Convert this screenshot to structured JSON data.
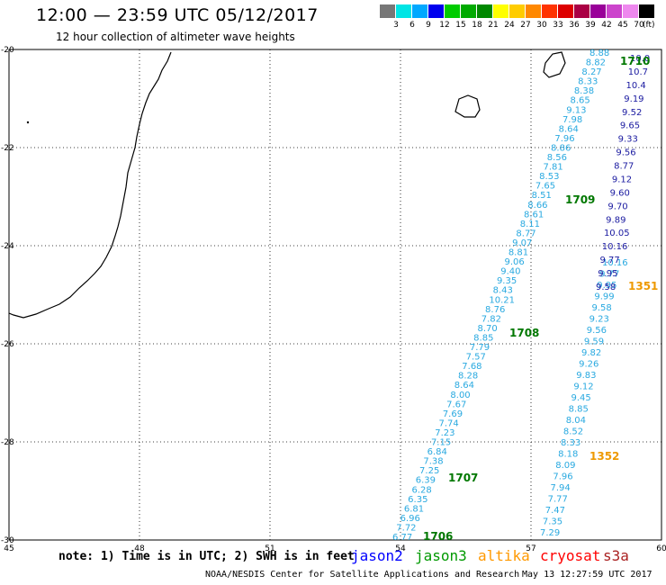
{
  "header": {
    "title": "12:00 — 23:59 UTC 05/12/2017",
    "subtitle": "12 hour collection of altimeter wave heights"
  },
  "color_scale": {
    "unit": "(ft)",
    "bins": [
      {
        "label": "3",
        "color": "#777777"
      },
      {
        "label": "6",
        "color": "#00e5e5"
      },
      {
        "label": "9",
        "color": "#00a8ff"
      },
      {
        "label": "12",
        "color": "#0000ee"
      },
      {
        "label": "15",
        "color": "#00cc00"
      },
      {
        "label": "18",
        "color": "#00aa00"
      },
      {
        "label": "21",
        "color": "#008800"
      },
      {
        "label": "24",
        "color": "#ffff00"
      },
      {
        "label": "27",
        "color": "#ffcc00"
      },
      {
        "label": "30",
        "color": "#ff8800"
      },
      {
        "label": "33",
        "color": "#ff3300"
      },
      {
        "label": "36",
        "color": "#dd0000"
      },
      {
        "label": "39",
        "color": "#aa0044"
      },
      {
        "label": "42",
        "color": "#990099"
      },
      {
        "label": "45",
        "color": "#cc44cc"
      },
      {
        "label": "70",
        "color": "#ee88ee"
      },
      {
        "label": "",
        "color": "#000000"
      }
    ]
  },
  "axes": {
    "lon_labels": [
      "45",
      "48",
      "51",
      "54",
      "57",
      "60"
    ],
    "lat_labels": [
      "-20",
      "-22",
      "-24",
      "-26",
      "-28",
      "-30"
    ]
  },
  "tracks": {
    "track1_color": "#29a9e0",
    "track1": [
      "8.88",
      "8.82",
      "8.27",
      "8.33",
      "8.38",
      "8.65",
      "9.13",
      "7.98",
      "8.64",
      "7.96",
      "8.86",
      "8.56",
      "7.81",
      "8.53",
      "7.65",
      "8.51",
      "8.66",
      "8.61",
      "8.11",
      "8.77",
      "9.07",
      "8.81",
      "9.06",
      "9.40",
      "9.35",
      "8.43",
      "10.21",
      "8.76",
      "7.82",
      "8.70",
      "8.85",
      "7.79",
      "7.57",
      "7.68",
      "8.28",
      "8.64",
      "8.00",
      "7.67",
      "7.69",
      "7.74",
      "7.23",
      "7.15",
      "6.84",
      "7.38",
      "7.25",
      "6.39",
      "6.28",
      "6.35",
      "6.81",
      "6.96",
      "7.72",
      "6.77"
    ],
    "track2_color": "#29a9e0",
    "track2": [
      "10.16",
      "9.77",
      "9.95",
      "9.99",
      "9.58",
      "9.23",
      "9.56",
      "9.59",
      "9.82",
      "9.26",
      "9.83",
      "9.12",
      "9.45",
      "8.85",
      "8.04",
      "8.52",
      "8.33",
      "8.18",
      "8.09",
      "7.96",
      "7.94",
      "7.77",
      "7.47",
      "7.35",
      "7.29"
    ],
    "track3_color": "#1a1aa0",
    "track3": [
      "10.0",
      "10.7",
      "10.4",
      "9.19",
      "9.52",
      "9.65",
      "9.33",
      "9.56",
      "8.77",
      "9.12",
      "9.60",
      "9.70",
      "9.89",
      "10.05",
      "10.16",
      "9.77",
      "9.95",
      "9.58"
    ],
    "time_labels_green": [
      "1710",
      "1709",
      "1708",
      "1707",
      "1706"
    ],
    "time_labels_orange": [
      "1351",
      "1352"
    ]
  },
  "footer": {
    "note": "note:  1) Time is in UTC;  2) SWH is in feet",
    "legend": [
      {
        "name": "jason2",
        "color": "#0000ff"
      },
      {
        "name": "jason3",
        "color": "#009900"
      },
      {
        "name": "altika",
        "color": "#ff9900"
      },
      {
        "name": "cryosat",
        "color": "#ff0000"
      },
      {
        "name": "s3a",
        "color": "#aa2222"
      }
    ],
    "credit": "NOAA/NESDIS Center for Satellite Applications and Research",
    "timestamp": "May 13 12:27:59 UTC 2017"
  }
}
